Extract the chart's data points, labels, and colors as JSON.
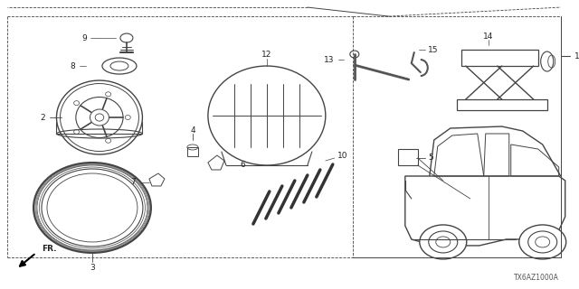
{
  "bg_color": "#ffffff",
  "lc": "#444444",
  "tc": "#222222",
  "diagram_code": "TX6AZ1000A",
  "fig_w": 6.4,
  "fig_h": 3.2,
  "dpi": 100
}
